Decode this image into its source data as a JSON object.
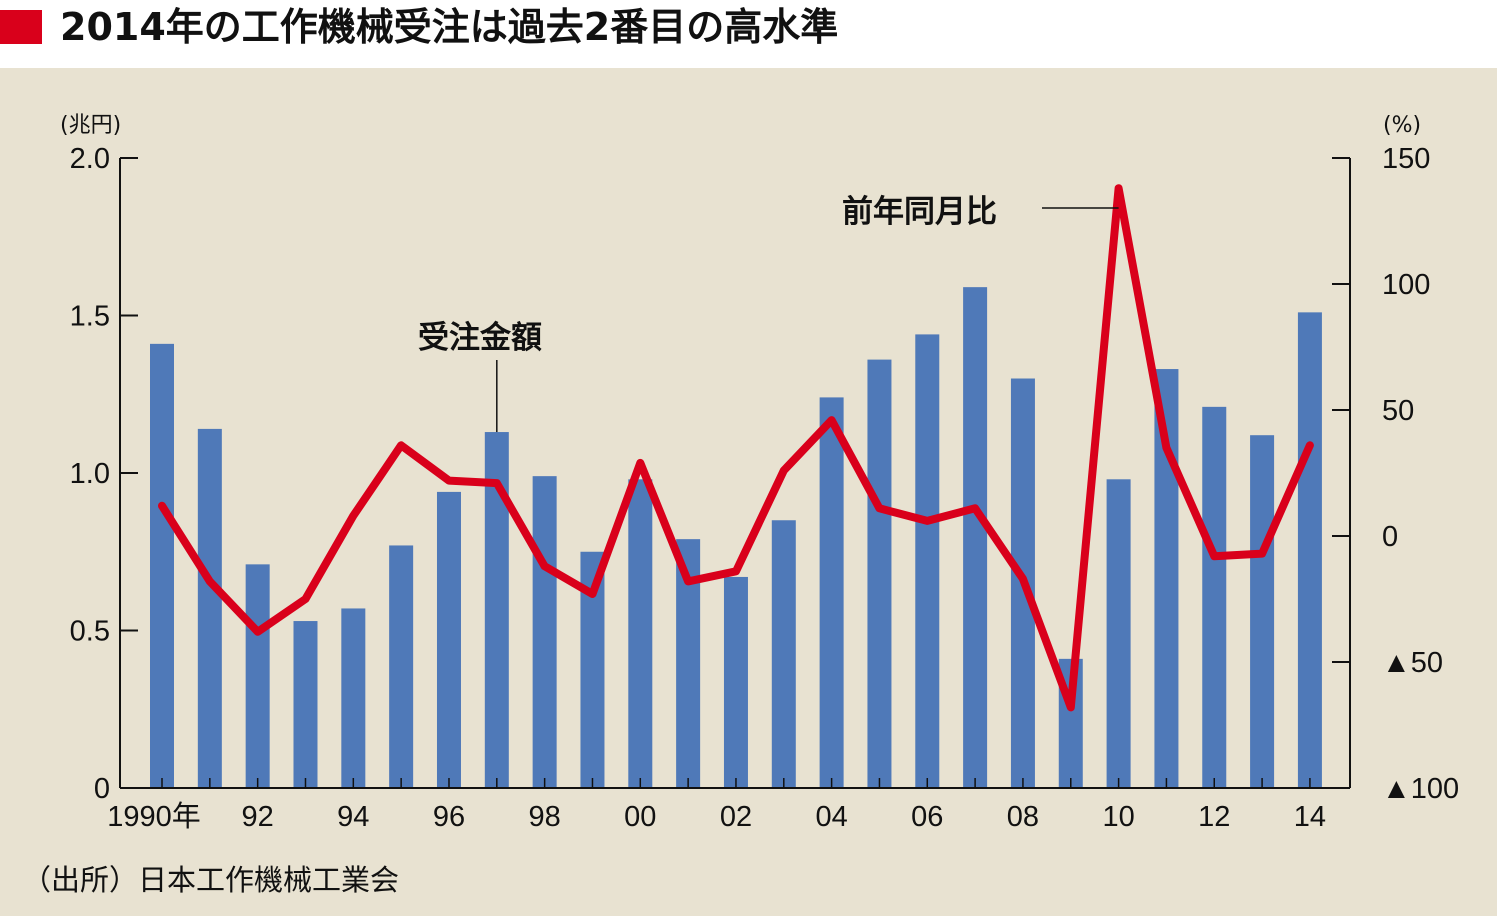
{
  "title": "2014年の工作機械受注は過去2番目の高水準",
  "chart_data": {
    "type": "bar+line",
    "x": [
      "1990",
      "1991",
      "1992",
      "1993",
      "1994",
      "1995",
      "1996",
      "1997",
      "1998",
      "1999",
      "2000",
      "2001",
      "2002",
      "2003",
      "2004",
      "2005",
      "2006",
      "2007",
      "2008",
      "2009",
      "2010",
      "2011",
      "2012",
      "2013",
      "2014"
    ],
    "x_tick_labels": [
      "1990年",
      "92",
      "94",
      "96",
      "98",
      "00",
      "02",
      "04",
      "06",
      "08",
      "10",
      "12",
      "14"
    ],
    "series": [
      {
        "name": "受注金額",
        "type": "bar",
        "axis": "left",
        "color": "#4f79b8",
        "values": [
          1.41,
          1.14,
          0.71,
          0.53,
          0.57,
          0.77,
          0.94,
          1.13,
          0.99,
          0.75,
          0.98,
          0.79,
          0.67,
          0.85,
          1.24,
          1.36,
          1.44,
          1.59,
          1.3,
          0.41,
          0.98,
          1.33,
          1.21,
          1.12,
          1.51
        ]
      },
      {
        "name": "前年同月比",
        "type": "line",
        "axis": "right",
        "color": "#d9001b",
        "values": [
          12,
          -18,
          -38,
          -25,
          8,
          36,
          22,
          21,
          -12,
          -23,
          29,
          -18,
          -14,
          26,
          46,
          11,
          6,
          11,
          -17,
          -68,
          138,
          35,
          -8,
          -7,
          36
        ]
      }
    ],
    "left_axis": {
      "unit": "(兆円)",
      "ylim": [
        0,
        2.0
      ],
      "ticks": [
        0,
        0.5,
        1.0,
        1.5,
        2.0
      ],
      "tick_labels": [
        "0",
        "0.5",
        "1.0",
        "1.5",
        "2.0"
      ]
    },
    "right_axis": {
      "unit": "(%)",
      "ylim": [
        -100,
        150
      ],
      "ticks": [
        -100,
        -50,
        0,
        50,
        100,
        150
      ],
      "tick_labels": [
        "▲100",
        "▲50",
        "0",
        "50",
        "100",
        "150"
      ]
    },
    "annotations": [
      {
        "text": "受注金額",
        "series": "受注金額",
        "x": "1997"
      },
      {
        "text": "前年同月比",
        "series": "前年同月比",
        "x": "2010"
      }
    ],
    "source": "（出所）日本工作機械工業会",
    "grid": false,
    "legend": "none"
  }
}
